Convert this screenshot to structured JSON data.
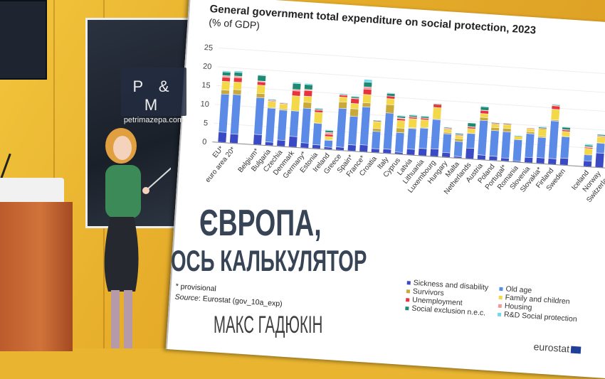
{
  "headline": {
    "line1": "ЄВРОПА,",
    "line2": "ОСЬ КАЛЬКУЛЯТОР",
    "author": "МАКС ГАДЮКІН"
  },
  "watermark": {
    "logo_text": "P & M",
    "site": "petrimazepa.com"
  },
  "chart_data": {
    "type": "bar",
    "stacked": true,
    "title": "General government total expenditure on social protection, 2023",
    "subtitle": "(% of GDP)",
    "ylim": [
      0,
      25
    ],
    "yticks": [
      0,
      5,
      10,
      15,
      20,
      25
    ],
    "grid": true,
    "legend_position": "bottom",
    "categories": [
      "EU*",
      "euro area 20*",
      "Belgium*",
      "Bulgaria",
      "Czechia",
      "Denmark",
      "Germany*",
      "Estonia",
      "Ireland",
      "Greece",
      "Spain*",
      "France*",
      "Croatia",
      "Italy",
      "Cyprus",
      "Latvia",
      "Lithuania",
      "Luxembourg",
      "Hungary",
      "Malta",
      "Netherlands",
      "Austria",
      "Poland",
      "Portugal*",
      "Romania",
      "Slovenia",
      "Slovakia*",
      "Finland",
      "Sweden",
      "Iceland",
      "Norway",
      "Switzerland"
    ],
    "group_breaks_after": [
      "euro area 20*",
      "Sweden"
    ],
    "series": [
      {
        "name": "Sickness and disability",
        "color": "#3a49c4",
        "values": [
          2.7,
          2.4,
          2.7,
          0.9,
          1.6,
          2.8,
          1.3,
          1.0,
          0.6,
          0.8,
          1.6,
          1.8,
          1.0,
          1.1,
          0.5,
          1.5,
          1.9,
          2.0,
          1.2,
          0.4,
          2.8,
          1.2,
          1.1,
          0.8,
          0.3,
          1.4,
          1.5,
          1.5,
          1.8,
          1.5,
          3.8,
          1.6
        ]
      },
      {
        "name": "Old age",
        "color": "#5b8be6",
        "values": [
          10.1,
          10.5,
          9.8,
          9.0,
          8.0,
          6.8,
          9.2,
          5.7,
          1.8,
          10.3,
          7.6,
          10.1,
          4.6,
          9.6,
          5.2,
          5.5,
          5.4,
          7.8,
          5.0,
          4.0,
          3.9,
          9.2,
          6.8,
          7.0,
          5.6,
          6.3,
          5.4,
          10.0,
          5.7,
          1.6,
          2.6,
          4.4
        ]
      },
      {
        "name": "Survivors",
        "color": "#c9a93a",
        "values": [
          1.1,
          1.3,
          1.1,
          0.2,
          0.3,
          0,
          1.6,
          0.1,
          0.2,
          1.7,
          2.0,
          1.1,
          0.8,
          2.2,
          1.2,
          0.2,
          0.2,
          0.2,
          0.4,
          0.7,
          0.1,
          0.8,
          0.8,
          0.9,
          0,
          0.5,
          0.3,
          0.3,
          0.1,
          0.1,
          0.1,
          0.3
        ]
      },
      {
        "name": "Family and children",
        "color": "#f3d84a",
        "values": [
          2.3,
          2.0,
          2.2,
          1.6,
          1.3,
          4.0,
          1.6,
          2.8,
          0.8,
          1.3,
          1.4,
          2.2,
          1.8,
          1.6,
          2.0,
          2.4,
          2.0,
          3.0,
          0.8,
          0.8,
          1.2,
          1.0,
          0.9,
          1.0,
          0.9,
          0.8,
          2.0,
          2.8,
          1.3,
          1.6,
          1.6,
          0.5
        ]
      },
      {
        "name": "Unemployment",
        "color": "#e8333f",
        "values": [
          1.1,
          1.2,
          0.9,
          0.2,
          0.2,
          1.3,
          1.5,
          0.6,
          0.6,
          0.5,
          1.3,
          1.4,
          0.2,
          0.7,
          0.5,
          0.4,
          0.4,
          0.8,
          0.2,
          0.2,
          0.4,
          0.8,
          0.2,
          0.2,
          0,
          0.2,
          0.1,
          0.9,
          0.4,
          0.3,
          0.2,
          0.5
        ]
      },
      {
        "name": "Housing",
        "color": "#f29a9a",
        "values": [
          0.4,
          0.4,
          0.2,
          0.1,
          0.1,
          0.4,
          0.3,
          0.1,
          0.5,
          0.1,
          0.1,
          0.6,
          0,
          0,
          0.2,
          0.1,
          0.1,
          0.1,
          0.1,
          0.1,
          0.1,
          0.1,
          0.1,
          0,
          0,
          0,
          0,
          0.2,
          0.1,
          0.2,
          0.1,
          0.2
        ]
      },
      {
        "name": "Social exclusion n.e.c.",
        "color": "#1f8a74",
        "values": [
          1.0,
          1.0,
          1.5,
          0.2,
          0,
          1.6,
          1.3,
          0.3,
          0.5,
          0.2,
          0.4,
          1.3,
          0.1,
          0.7,
          0.5,
          0.4,
          0.4,
          0.1,
          0.2,
          0.3,
          1.0,
          0.9,
          0.1,
          0.1,
          0.1,
          0,
          0.3,
          0.1,
          0.6,
          0.4,
          0.3,
          1.0
        ]
      },
      {
        "name": "R&D Social protection",
        "color": "#6fd8ea",
        "values": [
          0.3,
          0.4,
          0.2,
          0.1,
          0.1,
          0.3,
          0.3,
          0.2,
          0.2,
          0.1,
          0.2,
          0.7,
          0.1,
          0.2,
          0.2,
          0.2,
          0.2,
          0,
          0.1,
          0.1,
          0,
          0.2,
          0,
          0,
          0.1,
          0,
          0.2,
          0.2,
          0.2,
          0.3,
          0.1,
          0.1
        ]
      }
    ],
    "legend_col1": [
      "Sickness and disability",
      "Survivors",
      "Unemployment",
      "Social exclusion n.e.c."
    ],
    "legend_col2": [
      "Old age",
      "Family and children",
      "Housing",
      "R&D Social protection"
    ],
    "footnote": "* provisional",
    "source_label": "Source",
    "source": ": Eurostat (gov_10a_exp)",
    "brand": "eurostat"
  }
}
